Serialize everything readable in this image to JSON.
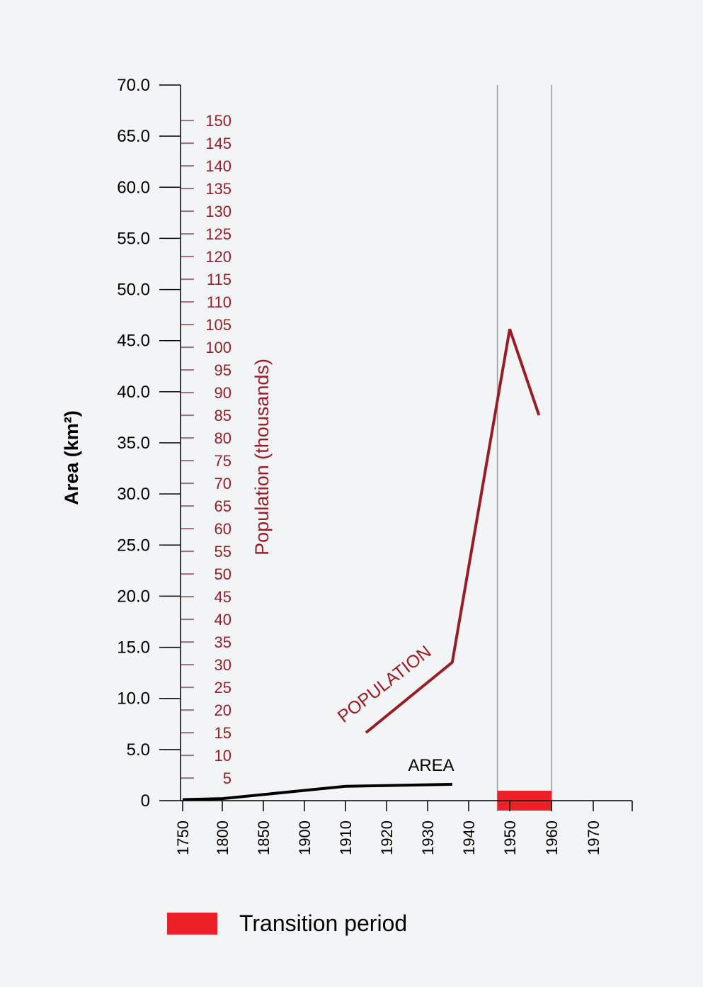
{
  "colors": {
    "area": "#000000",
    "population": "#9b1c24",
    "transition": "#ee2027",
    "axis": "#000000",
    "vline": "#9a9a9a",
    "background": "#f3f4f6"
  },
  "chart_data": {
    "type": "line",
    "area_axis": {
      "label": "Area (km²)",
      "min": 0,
      "max": 70,
      "ticks": [
        "0",
        "5.0",
        "10.0",
        "15.0",
        "20.0",
        "25.0",
        "30.0",
        "35.0",
        "40.0",
        "45.0",
        "50.0",
        "55.0",
        "60.0",
        "65.0",
        "70.0"
      ]
    },
    "population_axis": {
      "label": "Population (thousands)",
      "min": 0,
      "max": 150,
      "tick_step": 5,
      "ticks": [
        "5",
        "10",
        "15",
        "20",
        "25",
        "30",
        "35",
        "40",
        "45",
        "50",
        "55",
        "60",
        "65",
        "70",
        "75",
        "80",
        "85",
        "90",
        "95",
        "100",
        "105",
        "110",
        "115",
        "120",
        "125",
        "130",
        "135",
        "140",
        "145",
        "150"
      ]
    },
    "x_axis": {
      "ticks": [
        "1750",
        "1800",
        "1850",
        "1900",
        "1910",
        "1920",
        "1930",
        "1940",
        "1950",
        "1960",
        "1970"
      ]
    },
    "series": [
      {
        "name": "AREA",
        "axis": "area",
        "points": [
          {
            "x": 1750,
            "y": 0.1
          },
          {
            "x": 1800,
            "y": 0.2
          },
          {
            "x": 1910,
            "y": 1.4
          },
          {
            "x": 1936,
            "y": 1.6
          }
        ]
      },
      {
        "name": "POPULATION",
        "axis": "population",
        "points": [
          {
            "x": 1915,
            "y": 15
          },
          {
            "x": 1936,
            "y": 30.5
          },
          {
            "x": 1950,
            "y": 104
          },
          {
            "x": 1957,
            "y": 85
          }
        ]
      }
    ],
    "transition_period": {
      "start": 1947,
      "end": 1960
    },
    "vertical_lines": [
      1947,
      1960
    ],
    "legend": {
      "label": "Transition period",
      "position": "bottom-left"
    }
  }
}
